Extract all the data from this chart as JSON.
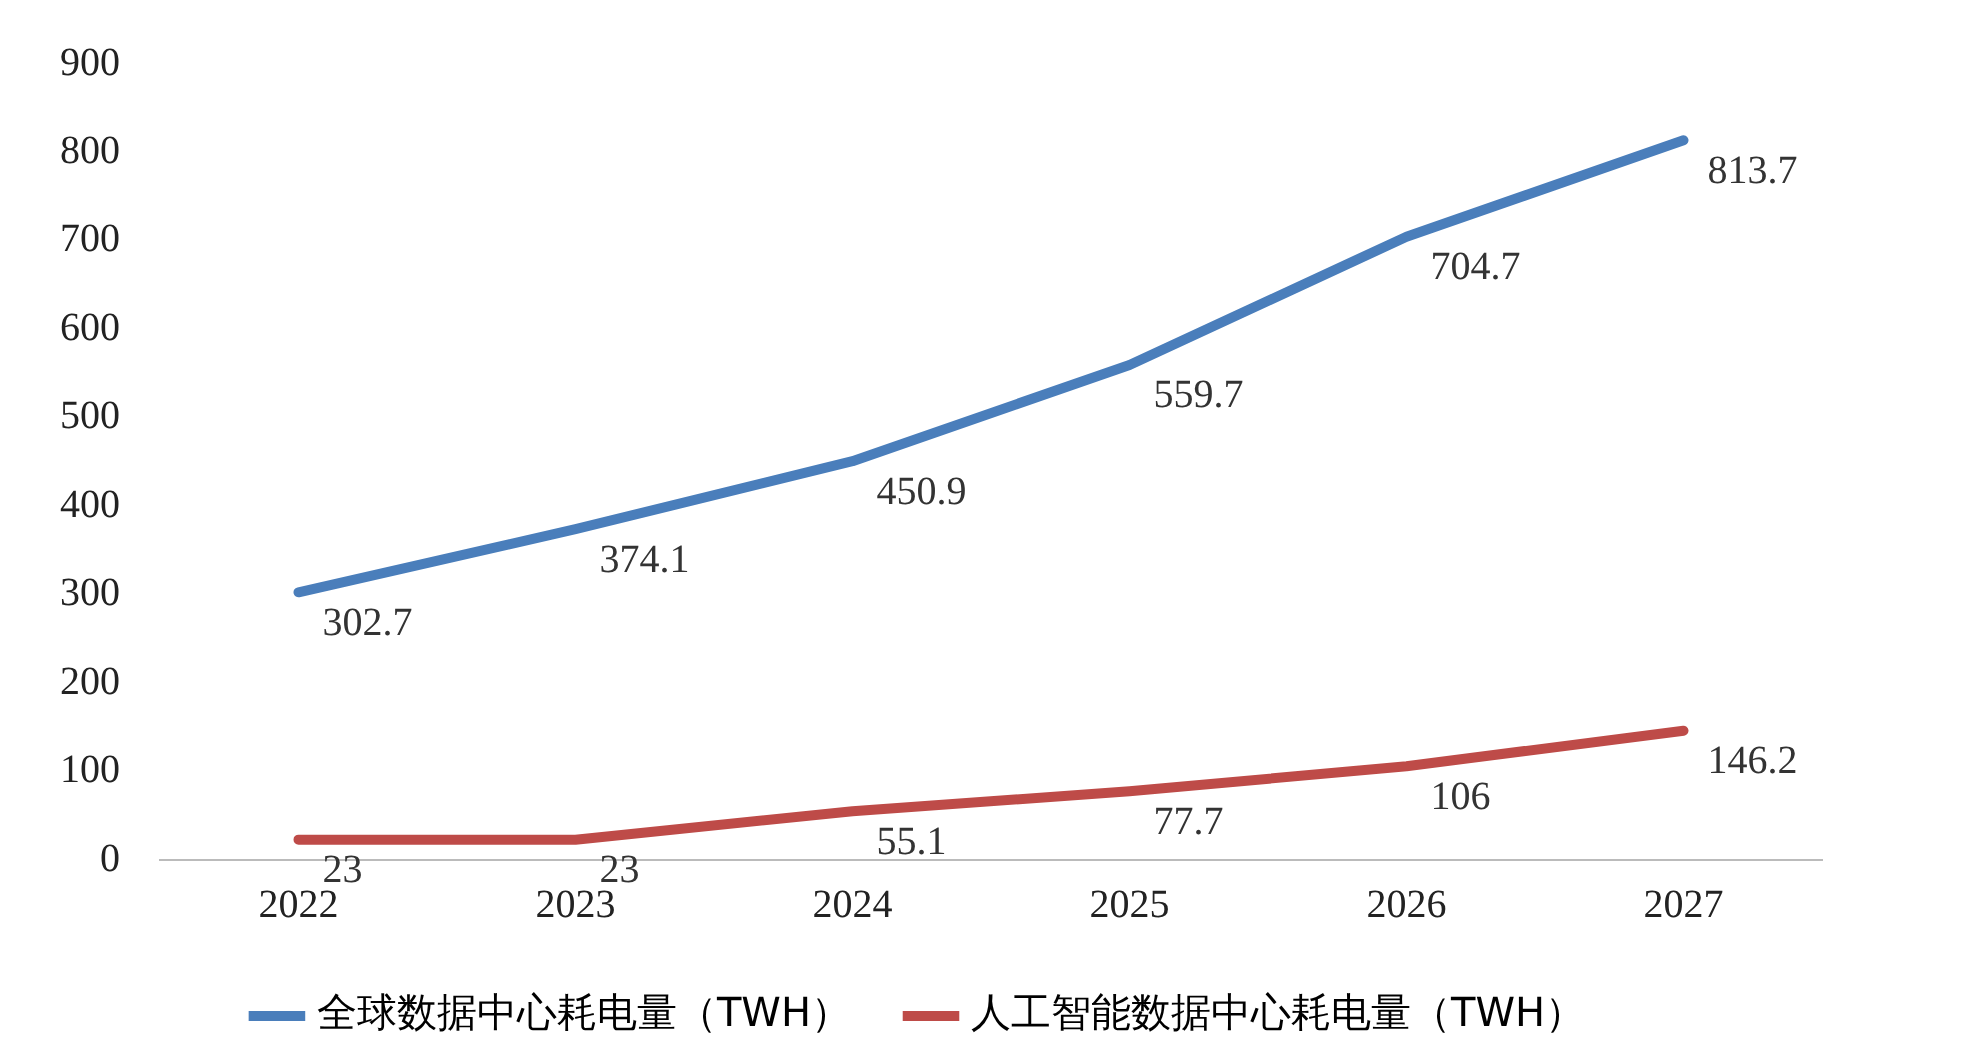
{
  "chart_data": {
    "type": "line",
    "categories": [
      "2022",
      "2023",
      "2024",
      "2025",
      "2026",
      "2027"
    ],
    "series": [
      {
        "name": "全球数据中心耗电量（TWH）",
        "color": "#4a7ebb",
        "values": [
          302.7,
          374.1,
          450.9,
          559.7,
          704.7,
          813.7
        ]
      },
      {
        "name": "人工智能数据中心耗电量（TWH）",
        "color": "#be4b48",
        "values": [
          23,
          23,
          55.1,
          77.7,
          106,
          146.2
        ]
      }
    ],
    "ylim": [
      0,
      900
    ],
    "yticks": [
      0,
      100,
      200,
      300,
      400,
      500,
      600,
      700,
      800,
      900
    ],
    "grid": false,
    "legend": "bottom",
    "marker": "none",
    "line_style": "solid",
    "data_labels": true
  }
}
